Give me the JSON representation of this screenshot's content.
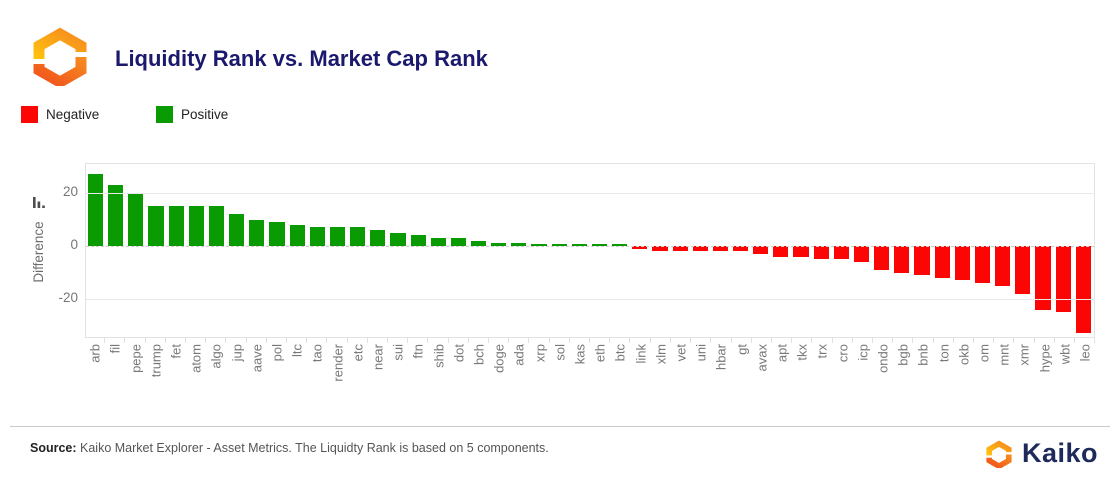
{
  "header": {
    "title": "Liquidity Rank vs. Market Cap Rank"
  },
  "legend": {
    "items": [
      {
        "label": "Negative",
        "color": "#fb0505"
      },
      {
        "label": "Positive",
        "color": "#0a9a02"
      }
    ]
  },
  "chart_data": {
    "type": "bar",
    "title": "Liquidity Rank vs. Market Cap Rank",
    "xlabel": "",
    "ylabel": "Difference",
    "yticks": [
      20,
      0,
      -20
    ],
    "ylim": [
      -35,
      31
    ],
    "grid": "horizontal gridlines at +20 and -20, dashed zero line",
    "legend_position": "top-left",
    "bar_colors": {
      "positive": "#0a9a02",
      "negative": "#fb0505"
    },
    "categories": [
      "arb",
      "fil",
      "pepe",
      "trump",
      "fet",
      "atom",
      "algo",
      "jup",
      "aave",
      "pol",
      "ltc",
      "tao",
      "render",
      "etc",
      "near",
      "sui",
      "ftn",
      "shib",
      "dot",
      "bch",
      "doge",
      "ada",
      "xrp",
      "sol",
      "kas",
      "eth",
      "btc",
      "link",
      "xlm",
      "vet",
      "uni",
      "hbar",
      "gt",
      "avax",
      "apt",
      "tkx",
      "trx",
      "cro",
      "icp",
      "ondo",
      "bgb",
      "bnb",
      "ton",
      "okb",
      "om",
      "mnt",
      "xmr",
      "hype",
      "wbt",
      "leo"
    ],
    "values": [
      27,
      23,
      20,
      15,
      15,
      15,
      15,
      12,
      10,
      9,
      8,
      7,
      7,
      7,
      6,
      5,
      4,
      3,
      3,
      2,
      1,
      1,
      0,
      0,
      0,
      0,
      0,
      -1,
      -2,
      -2,
      -2,
      -2,
      -2,
      -3,
      -4,
      -4,
      -5,
      -5,
      -6,
      -9,
      -10,
      -11,
      -12,
      -13,
      -14,
      -15,
      -18,
      -24,
      -25,
      -33
    ]
  },
  "footer": {
    "source_label": "Source:",
    "source_text": " Kaiko Market Explorer - Asset Metrics. The Liquidty Rank is based on 5 components.",
    "brand": "Kaiko"
  }
}
